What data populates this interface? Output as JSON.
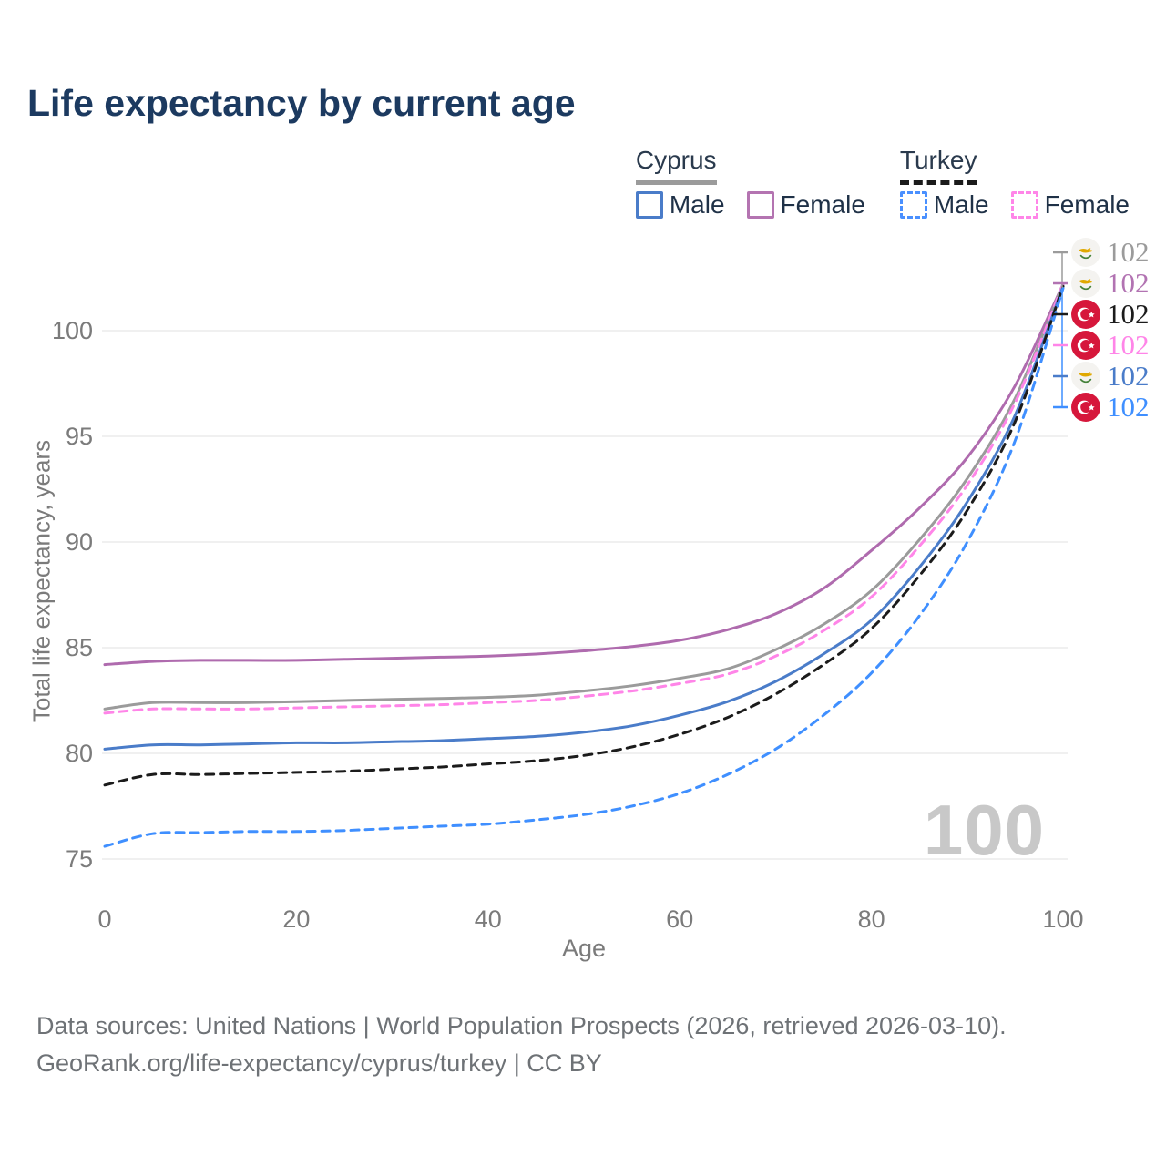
{
  "title": "Life expectancy by current age",
  "legend": {
    "groups": [
      {
        "title": "Cyprus",
        "line_style": "solid",
        "line_color": "#9b9b9b",
        "items": [
          {
            "label": "Male",
            "color": "#4a7cc9",
            "dash": false
          },
          {
            "label": "Female",
            "color": "#b474b1",
            "dash": false
          }
        ]
      },
      {
        "title": "Turkey",
        "line_style": "dashed",
        "line_color": "#1b1b1b",
        "items": [
          {
            "label": "Male",
            "color": "#4a90ff",
            "dash": true
          },
          {
            "label": "Female",
            "color": "#ff85e8",
            "dash": true
          }
        ]
      }
    ]
  },
  "chart_data": {
    "type": "line",
    "title": "Life expectancy by current age",
    "xlabel": "Age",
    "ylabel": "Total life expectancy, years",
    "x": [
      0,
      5,
      10,
      15,
      20,
      25,
      30,
      35,
      40,
      45,
      50,
      55,
      60,
      65,
      70,
      75,
      80,
      85,
      90,
      95,
      100
    ],
    "xticks": [
      0,
      20,
      40,
      60,
      80,
      100
    ],
    "yticks": [
      75,
      80,
      85,
      90,
      95,
      100
    ],
    "xlim": [
      0,
      100
    ],
    "ylim": [
      74.5,
      103
    ],
    "grid": "horizontal",
    "legend_position": "top-right",
    "series": [
      {
        "name": "Cyprus Female",
        "id": "cyprus-female",
        "country": "Cyprus",
        "sex": "Female",
        "color": "#af6bae",
        "dash": false,
        "values": [
          84.2,
          84.35,
          84.4,
          84.4,
          84.4,
          84.45,
          84.5,
          84.55,
          84.6,
          84.7,
          84.85,
          85.05,
          85.35,
          85.85,
          86.6,
          87.8,
          89.6,
          91.6,
          94.0,
          97.4,
          102.2
        ]
      },
      {
        "name": "Cyprus Both sexes",
        "id": "cyprus-all",
        "country": "Cyprus",
        "sex": "Both",
        "color": "#9b9b9b",
        "dash": false,
        "values": [
          82.1,
          82.4,
          82.4,
          82.4,
          82.45,
          82.5,
          82.55,
          82.6,
          82.65,
          82.75,
          82.95,
          83.2,
          83.55,
          84.0,
          84.9,
          86.1,
          87.7,
          90.1,
          93.0,
          96.8,
          102.2
        ]
      },
      {
        "name": "Turkey Female",
        "id": "turkey-female",
        "country": "Turkey",
        "sex": "Female",
        "color": "#ff85e8",
        "dash": true,
        "values": [
          81.9,
          82.1,
          82.1,
          82.1,
          82.15,
          82.2,
          82.25,
          82.3,
          82.4,
          82.5,
          82.7,
          82.95,
          83.3,
          83.75,
          84.6,
          85.8,
          87.4,
          89.8,
          92.7,
          96.6,
          102.2
        ]
      },
      {
        "name": "Cyprus Male",
        "id": "cyprus-male",
        "country": "Cyprus",
        "sex": "Male",
        "color": "#4a7cc9",
        "dash": false,
        "values": [
          80.2,
          80.4,
          80.4,
          80.45,
          80.5,
          80.5,
          80.55,
          80.6,
          80.7,
          80.8,
          81.0,
          81.3,
          81.8,
          82.45,
          83.4,
          84.7,
          86.3,
          88.8,
          91.9,
          96.0,
          102.1
        ]
      },
      {
        "name": "Turkey Both sexes",
        "id": "turkey-all",
        "country": "Turkey",
        "sex": "Both",
        "color": "#1b1b1b",
        "dash": true,
        "values": [
          78.5,
          79.0,
          79.0,
          79.05,
          79.1,
          79.15,
          79.25,
          79.35,
          79.5,
          79.65,
          79.9,
          80.3,
          80.9,
          81.7,
          82.8,
          84.2,
          85.9,
          88.4,
          91.5,
          95.7,
          102.1
        ]
      },
      {
        "name": "Turkey Male",
        "id": "turkey-male",
        "country": "Turkey",
        "sex": "Male",
        "color": "#3f8fff",
        "dash": true,
        "values": [
          75.6,
          76.2,
          76.25,
          76.3,
          76.3,
          76.35,
          76.45,
          76.55,
          76.65,
          76.85,
          77.1,
          77.5,
          78.1,
          79.0,
          80.2,
          81.8,
          83.8,
          86.5,
          90.0,
          94.8,
          102.0
        ]
      }
    ]
  },
  "end_labels": [
    {
      "series": "cyprus-all",
      "flag": "cyprus",
      "value": "102",
      "color": "#9b9b9b"
    },
    {
      "series": "cyprus-female",
      "flag": "cyprus",
      "value": "102",
      "color": "#b273b2"
    },
    {
      "series": "turkey-all",
      "flag": "turkey",
      "value": "102",
      "color": "#1b1b1b"
    },
    {
      "series": "turkey-female",
      "flag": "turkey",
      "value": "102",
      "color": "#ff85e8"
    },
    {
      "series": "cyprus-male",
      "flag": "cyprus",
      "value": "102",
      "color": "#4a7cc9"
    },
    {
      "series": "turkey-male",
      "flag": "turkey",
      "value": "102",
      "color": "#3f8fff"
    }
  ],
  "watermark": "100",
  "footer": {
    "line1": "Data sources: United Nations | World Population Prospects (2026, retrieved 2026-03-10).",
    "line2": "GeoRank.org/life-expectancy/cyprus/turkey | CC BY"
  }
}
